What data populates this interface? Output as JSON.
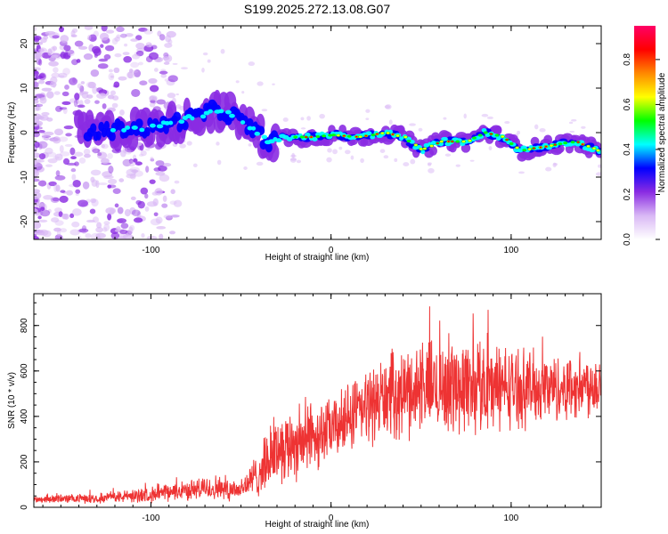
{
  "title": "S199.2025.272.13.08.G07",
  "chart_data": [
    {
      "type": "heatmap",
      "xlabel": "Height of straight line (km)",
      "ylabel": "Frequency (Hz)",
      "xlim": [
        -165,
        150
      ],
      "ylim": [
        -24,
        24
      ],
      "xticks": [
        "-100",
        "0",
        "100"
      ],
      "yticks": [
        "-20",
        "-10",
        "0",
        "10",
        "20"
      ],
      "colorbar": {
        "label": "Normalized spectral amplitude",
        "range": [
          0.0,
          0.95
        ],
        "ticks": [
          "0.0",
          "0.2",
          "0.4",
          "0.6",
          "0.8"
        ],
        "colors": [
          "#ffffff",
          "#d9b8f5",
          "#8a2be2",
          "#0000ff",
          "#00ffff",
          "#00ff00",
          "#ffff00",
          "#ff8800",
          "#ff0000",
          "#ff0066"
        ]
      },
      "ridge_frequency_hz": [
        {
          "x": -130,
          "y": 0
        },
        {
          "x": -115,
          "y": 1
        },
        {
          "x": -100,
          "y": 1
        },
        {
          "x": -90,
          "y": 2
        },
        {
          "x": -80,
          "y": 3
        },
        {
          "x": -65,
          "y": 5
        },
        {
          "x": -55,
          "y": 4
        },
        {
          "x": -45,
          "y": 1
        },
        {
          "x": -35,
          "y": -2
        },
        {
          "x": -25,
          "y": -1
        },
        {
          "x": -10,
          "y": -1
        },
        {
          "x": 0,
          "y": -0.5
        },
        {
          "x": 15,
          "y": -1
        },
        {
          "x": 30,
          "y": 0
        },
        {
          "x": 40,
          "y": -1
        },
        {
          "x": 50,
          "y": -4
        },
        {
          "x": 60,
          "y": -2
        },
        {
          "x": 75,
          "y": -2
        },
        {
          "x": 85,
          "y": 0
        },
        {
          "x": 95,
          "y": -1
        },
        {
          "x": 105,
          "y": -4
        },
        {
          "x": 120,
          "y": -3
        },
        {
          "x": 135,
          "y": -2
        },
        {
          "x": 148,
          "y": -4
        }
      ]
    },
    {
      "type": "line",
      "xlabel": "Height of straight line (km)",
      "ylabel": "SNR (10 * v/v)",
      "xlim": [
        -165,
        150
      ],
      "ylim": [
        0,
        940
      ],
      "xticks": [
        "-100",
        "0",
        "100"
      ],
      "yticks": [
        "0",
        "200",
        "400",
        "600",
        "800"
      ],
      "color": "#ee3333",
      "envelope": [
        {
          "x": -165,
          "mean": 35,
          "spread": 20
        },
        {
          "x": -130,
          "mean": 40,
          "spread": 25
        },
        {
          "x": -100,
          "mean": 55,
          "spread": 40
        },
        {
          "x": -80,
          "mean": 75,
          "spread": 50
        },
        {
          "x": -65,
          "mean": 85,
          "spread": 70
        },
        {
          "x": -50,
          "mean": 80,
          "spread": 60
        },
        {
          "x": -40,
          "mean": 150,
          "spread": 120
        },
        {
          "x": -30,
          "mean": 260,
          "spread": 180
        },
        {
          "x": -15,
          "mean": 300,
          "spread": 200
        },
        {
          "x": 0,
          "mean": 340,
          "spread": 160
        },
        {
          "x": 10,
          "mean": 390,
          "spread": 180
        },
        {
          "x": 25,
          "mean": 470,
          "spread": 210
        },
        {
          "x": 50,
          "mean": 530,
          "spread": 240
        },
        {
          "x": 80,
          "mean": 540,
          "spread": 260
        },
        {
          "x": 100,
          "mean": 530,
          "spread": 210
        },
        {
          "x": 130,
          "mean": 525,
          "spread": 170
        },
        {
          "x": 150,
          "mean": 550,
          "spread": 170
        }
      ]
    }
  ]
}
